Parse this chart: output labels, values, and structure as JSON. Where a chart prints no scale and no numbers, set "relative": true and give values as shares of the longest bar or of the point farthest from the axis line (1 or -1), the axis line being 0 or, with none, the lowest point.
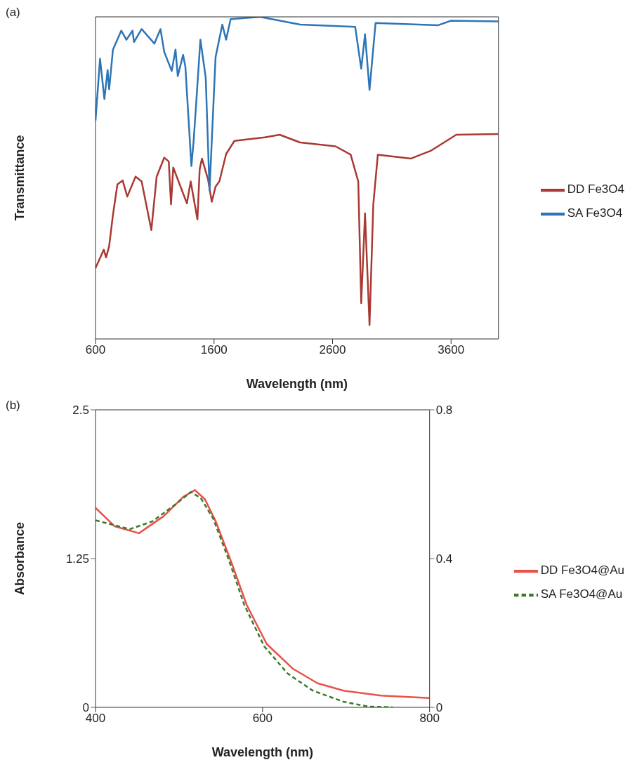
{
  "chart_data": [
    {
      "type": "line",
      "relative": true,
      "xlabel": "Wavelength (nm)",
      "ylabel": "Transmittance",
      "annotations": [
        "(a)"
      ],
      "xlim": [
        600,
        4000
      ],
      "xticks": [
        600,
        1600,
        2600,
        3600
      ],
      "tick_labels": "x",
      "legend": "right",
      "line_style": "solid",
      "series": [
        {
          "name": "DD Fe3O4",
          "color": "#a83a33",
          "x": [
            600,
            670,
            689,
            715,
            747,
            785,
            829,
            868,
            938,
            989,
            1071,
            1116,
            1180,
            1218,
            1237,
            1256,
            1371,
            1403,
            1460,
            1479,
            1498,
            1549,
            1581,
            1613,
            1645,
            1702,
            1772,
            2027,
            2154,
            2326,
            2625,
            2753,
            2817,
            2842,
            2874,
            2912,
            2944,
            2982,
            3262,
            3428,
            3644,
            4000
          ],
          "values": [
            0.22,
            0.277,
            0.253,
            0.288,
            0.385,
            0.48,
            0.492,
            0.442,
            0.504,
            0.489,
            0.338,
            0.504,
            0.563,
            0.551,
            0.418,
            0.532,
            0.421,
            0.489,
            0.371,
            0.527,
            0.56,
            0.496,
            0.426,
            0.473,
            0.489,
            0.574,
            0.615,
            0.626,
            0.634,
            0.61,
            0.598,
            0.572,
            0.489,
            0.111,
            0.39,
            0.043,
            0.418,
            0.572,
            0.56,
            0.584,
            0.634,
            0.636
          ]
        },
        {
          "name": "SA Fe3O4",
          "color": "#2e75b6",
          "x": [
            600,
            638,
            675,
            702,
            715,
            747,
            817,
            861,
            912,
            925,
            989,
            1097,
            1148,
            1180,
            1243,
            1275,
            1294,
            1339,
            1358,
            1409,
            1428,
            1454,
            1485,
            1530,
            1562,
            1613,
            1670,
            1702,
            1740,
            1989,
            2326,
            2791,
            2842,
            2874,
            2912,
            2963,
            3492,
            3600,
            4000
          ],
          "values": [
            0.678,
            0.87,
            0.745,
            0.835,
            0.775,
            0.898,
            0.957,
            0.929,
            0.957,
            0.922,
            0.962,
            0.917,
            0.962,
            0.891,
            0.832,
            0.898,
            0.816,
            0.882,
            0.846,
            0.537,
            0.615,
            0.757,
            0.929,
            0.811,
            0.461,
            0.875,
            0.976,
            0.929,
            0.993,
            1,
            0.976,
            0.969,
            0.839,
            0.946,
            0.773,
            0.981,
            0.974,
            0.988,
            0.986
          ]
        }
      ]
    },
    {
      "type": "line",
      "xlabel": "Wavelength (nm)",
      "ylabel": "Absorbance",
      "annotations": [
        "(b)"
      ],
      "xlim": [
        400,
        800
      ],
      "xticks": [
        400,
        600,
        800
      ],
      "ylim": [
        0,
        2.5
      ],
      "yticks": [
        0,
        1.25,
        2.5
      ],
      "y2lim": [
        0,
        0.8
      ],
      "y2ticks": [
        0,
        0.4,
        0.8
      ],
      "legend": "right",
      "series": [
        {
          "name": "DD Fe3O4@Au",
          "color": "#e8524a",
          "line_style": "solid",
          "x": [
            400,
            423,
            452,
            481,
            505,
            519,
            531,
            544,
            563,
            581,
            605,
            636,
            666,
            697,
            742,
            800
          ],
          "values": [
            1.676,
            1.521,
            1.463,
            1.603,
            1.768,
            1.826,
            1.748,
            1.562,
            1.212,
            0.861,
            0.532,
            0.326,
            0.202,
            0.14,
            0.099,
            0.078
          ]
        },
        {
          "name": "SA Fe3O4@Au",
          "color": "#3a7a2a",
          "line_style": "dashed",
          "axis": "y2",
          "x": [
            400,
            441,
            468,
            496,
            514,
            526,
            541,
            560,
            578,
            602,
            630,
            660,
            697,
            727,
            756
          ],
          "values": [
            0.503,
            0.479,
            0.5,
            0.546,
            0.579,
            0.563,
            0.507,
            0.394,
            0.276,
            0.164,
            0.091,
            0.045,
            0.015,
            0.002,
            0
          ]
        }
      ]
    }
  ]
}
